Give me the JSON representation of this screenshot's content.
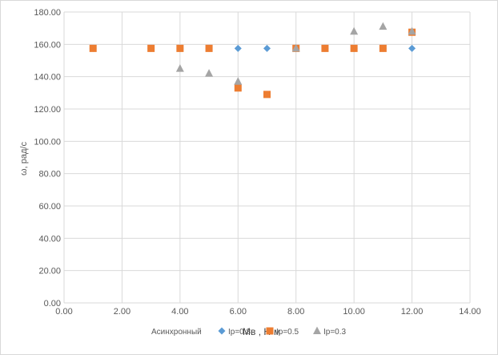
{
  "chart_data": {
    "type": "scatter",
    "title": "",
    "xlabel": "",
    "ylabel": "ω, рад/с",
    "xlim": [
      0,
      14
    ],
    "ylim": [
      0,
      180
    ],
    "xticks": [
      "0.00",
      "2.00",
      "4.00",
      "6.00",
      "8.00",
      "10.00",
      "12.00",
      "14.00"
    ],
    "yticks": [
      "0.00",
      "20.00",
      "40.00",
      "60.00",
      "80.00",
      "100.00",
      "120.00",
      "140.00",
      "160.00",
      "180.00"
    ],
    "grid": true,
    "legend_position": "bottom",
    "legend_prefix": "Асинхронный",
    "overlay_label": "Мв , Н·м",
    "series": [
      {
        "name": "Ip=0.8",
        "marker": "diamond",
        "color": "#5b9bd5",
        "points": [
          [
            1,
            157.5
          ],
          [
            3,
            157.5
          ],
          [
            4,
            157.5
          ],
          [
            5,
            157.5
          ],
          [
            6,
            157.5
          ],
          [
            7,
            157.5
          ],
          [
            8,
            157.5
          ],
          [
            9,
            157.5
          ],
          [
            10,
            157.5
          ],
          [
            11,
            157.5
          ],
          [
            12,
            157.5
          ]
        ]
      },
      {
        "name": "Ip=0.5",
        "marker": "square",
        "color": "#ed7d31",
        "points": [
          [
            1,
            157.5
          ],
          [
            3,
            157.5
          ],
          [
            4,
            157.5
          ],
          [
            5,
            157.5
          ],
          [
            6,
            133
          ],
          [
            7,
            129
          ],
          [
            8,
            157.5
          ],
          [
            9,
            157.5
          ],
          [
            10,
            157.5
          ],
          [
            11,
            157.5
          ],
          [
            12,
            167.5
          ]
        ]
      },
      {
        "name": "Ip=0.3",
        "marker": "triangle",
        "color": "#a5a5a5",
        "points": [
          [
            4,
            145
          ],
          [
            5,
            142
          ],
          [
            6,
            137
          ],
          [
            8,
            157.5
          ],
          [
            10,
            168
          ],
          [
            11,
            171
          ],
          [
            12,
            168
          ]
        ]
      }
    ]
  }
}
